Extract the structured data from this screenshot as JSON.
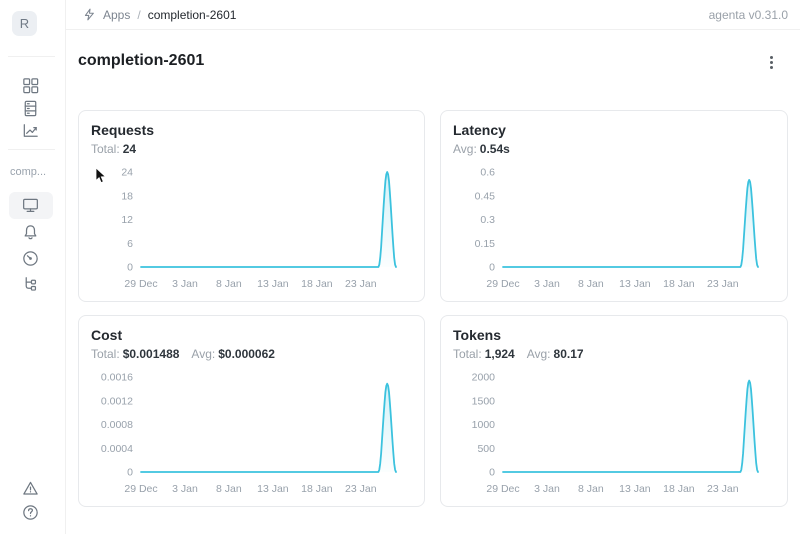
{
  "topbar": {
    "breadcrumb": {
      "icon": "zap-icon",
      "section": "Apps",
      "separator": "/",
      "current": "completion-2601"
    },
    "version": "agenta v0.31.0"
  },
  "sidebar": {
    "avatar_letter": "R",
    "nav_icons": [
      "grid-icon",
      "list-icon",
      "trend-chart-icon"
    ],
    "workspace_label": "comp...",
    "app_nav_icons": [
      "monitor-icon",
      "bell-icon",
      "gauge-icon",
      "tree-icon"
    ],
    "active_icon": "monitor-icon",
    "footer_icons": [
      "alert-triangle-icon",
      "question-circle-icon"
    ]
  },
  "page": {
    "title": "completion-2601",
    "menu_icon": "kebab-menu-icon"
  },
  "cards": [
    {
      "title": "Requests",
      "stats": [
        {
          "label": "Total:",
          "value": "24"
        }
      ]
    },
    {
      "title": "Latency",
      "stats": [
        {
          "label": "Avg:",
          "value": "0.54s"
        }
      ]
    },
    {
      "title": "Cost",
      "stats": [
        {
          "label": "Total:",
          "value": "$0.001488"
        },
        {
          "label": "Avg:",
          "value": "$0.000062"
        }
      ]
    },
    {
      "title": "Tokens",
      "stats": [
        {
          "label": "Total:",
          "value": "1,924"
        },
        {
          "label": "Avg:",
          "value": "80.17"
        }
      ]
    }
  ],
  "colors": {
    "line": "#3bc2de",
    "border": "#e7e9ec",
    "muted_text": "#98a1ab"
  },
  "chart_data": [
    {
      "type": "area",
      "title": "Requests",
      "ylabel": "",
      "xlabel": "",
      "color": "#3bc2de",
      "ymax": 24,
      "yticks": [
        0,
        6,
        12,
        18,
        24
      ],
      "xticks": [
        {
          "index": 0,
          "label": "29 Dec"
        },
        {
          "index": 5,
          "label": "3 Jan"
        },
        {
          "index": 10,
          "label": "8 Jan"
        },
        {
          "index": 15,
          "label": "13 Jan"
        },
        {
          "index": 20,
          "label": "18 Jan"
        },
        {
          "index": 25,
          "label": "23 Jan"
        }
      ],
      "x_range": [
        "29 Dec",
        "27 Jan"
      ],
      "values": [
        0,
        0,
        0,
        0,
        0,
        0,
        0,
        0,
        0,
        0,
        0,
        0,
        0,
        0,
        0,
        0,
        0,
        0,
        0,
        0,
        0,
        0,
        0,
        0,
        0,
        0,
        0,
        0,
        24,
        0
      ]
    },
    {
      "type": "area",
      "title": "Latency",
      "ylabel": "",
      "xlabel": "",
      "color": "#3bc2de",
      "ymax": 0.6,
      "yticks": [
        0,
        0.15,
        0.3,
        0.45,
        0.6
      ],
      "xticks": [
        {
          "index": 0,
          "label": "29 Dec"
        },
        {
          "index": 5,
          "label": "3 Jan"
        },
        {
          "index": 10,
          "label": "8 Jan"
        },
        {
          "index": 15,
          "label": "13 Jan"
        },
        {
          "index": 20,
          "label": "18 Jan"
        },
        {
          "index": 25,
          "label": "23 Jan"
        }
      ],
      "x_range": [
        "29 Dec",
        "27 Jan"
      ],
      "values": [
        0,
        0,
        0,
        0,
        0,
        0,
        0,
        0,
        0,
        0,
        0,
        0,
        0,
        0,
        0,
        0,
        0,
        0,
        0,
        0,
        0,
        0,
        0,
        0,
        0,
        0,
        0,
        0,
        0.55,
        0
      ]
    },
    {
      "type": "area",
      "title": "Cost",
      "ylabel": "",
      "xlabel": "",
      "color": "#3bc2de",
      "ymax": 0.0016,
      "yticks": [
        0,
        0.0004,
        0.0008,
        0.0012,
        0.0016
      ],
      "xticks": [
        {
          "index": 0,
          "label": "29 Dec"
        },
        {
          "index": 5,
          "label": "3 Jan"
        },
        {
          "index": 10,
          "label": "8 Jan"
        },
        {
          "index": 15,
          "label": "13 Jan"
        },
        {
          "index": 20,
          "label": "18 Jan"
        },
        {
          "index": 25,
          "label": "23 Jan"
        }
      ],
      "x_range": [
        "29 Dec",
        "27 Jan"
      ],
      "values": [
        0,
        0,
        0,
        0,
        0,
        0,
        0,
        0,
        0,
        0,
        0,
        0,
        0,
        0,
        0,
        0,
        0,
        0,
        0,
        0,
        0,
        0,
        0,
        0,
        0,
        0,
        0,
        0,
        0.001488,
        0
      ]
    },
    {
      "type": "area",
      "title": "Tokens",
      "ylabel": "",
      "xlabel": "",
      "color": "#3bc2de",
      "ymax": 2000,
      "yticks": [
        0,
        500,
        1000,
        1500,
        2000
      ],
      "xticks": [
        {
          "index": 0,
          "label": "29 Dec"
        },
        {
          "index": 5,
          "label": "3 Jan"
        },
        {
          "index": 10,
          "label": "8 Jan"
        },
        {
          "index": 15,
          "label": "13 Jan"
        },
        {
          "index": 20,
          "label": "18 Jan"
        },
        {
          "index": 25,
          "label": "23 Jan"
        }
      ],
      "x_range": [
        "29 Dec",
        "27 Jan"
      ],
      "values": [
        0,
        0,
        0,
        0,
        0,
        0,
        0,
        0,
        0,
        0,
        0,
        0,
        0,
        0,
        0,
        0,
        0,
        0,
        0,
        0,
        0,
        0,
        0,
        0,
        0,
        0,
        0,
        0,
        1924,
        0
      ]
    }
  ]
}
